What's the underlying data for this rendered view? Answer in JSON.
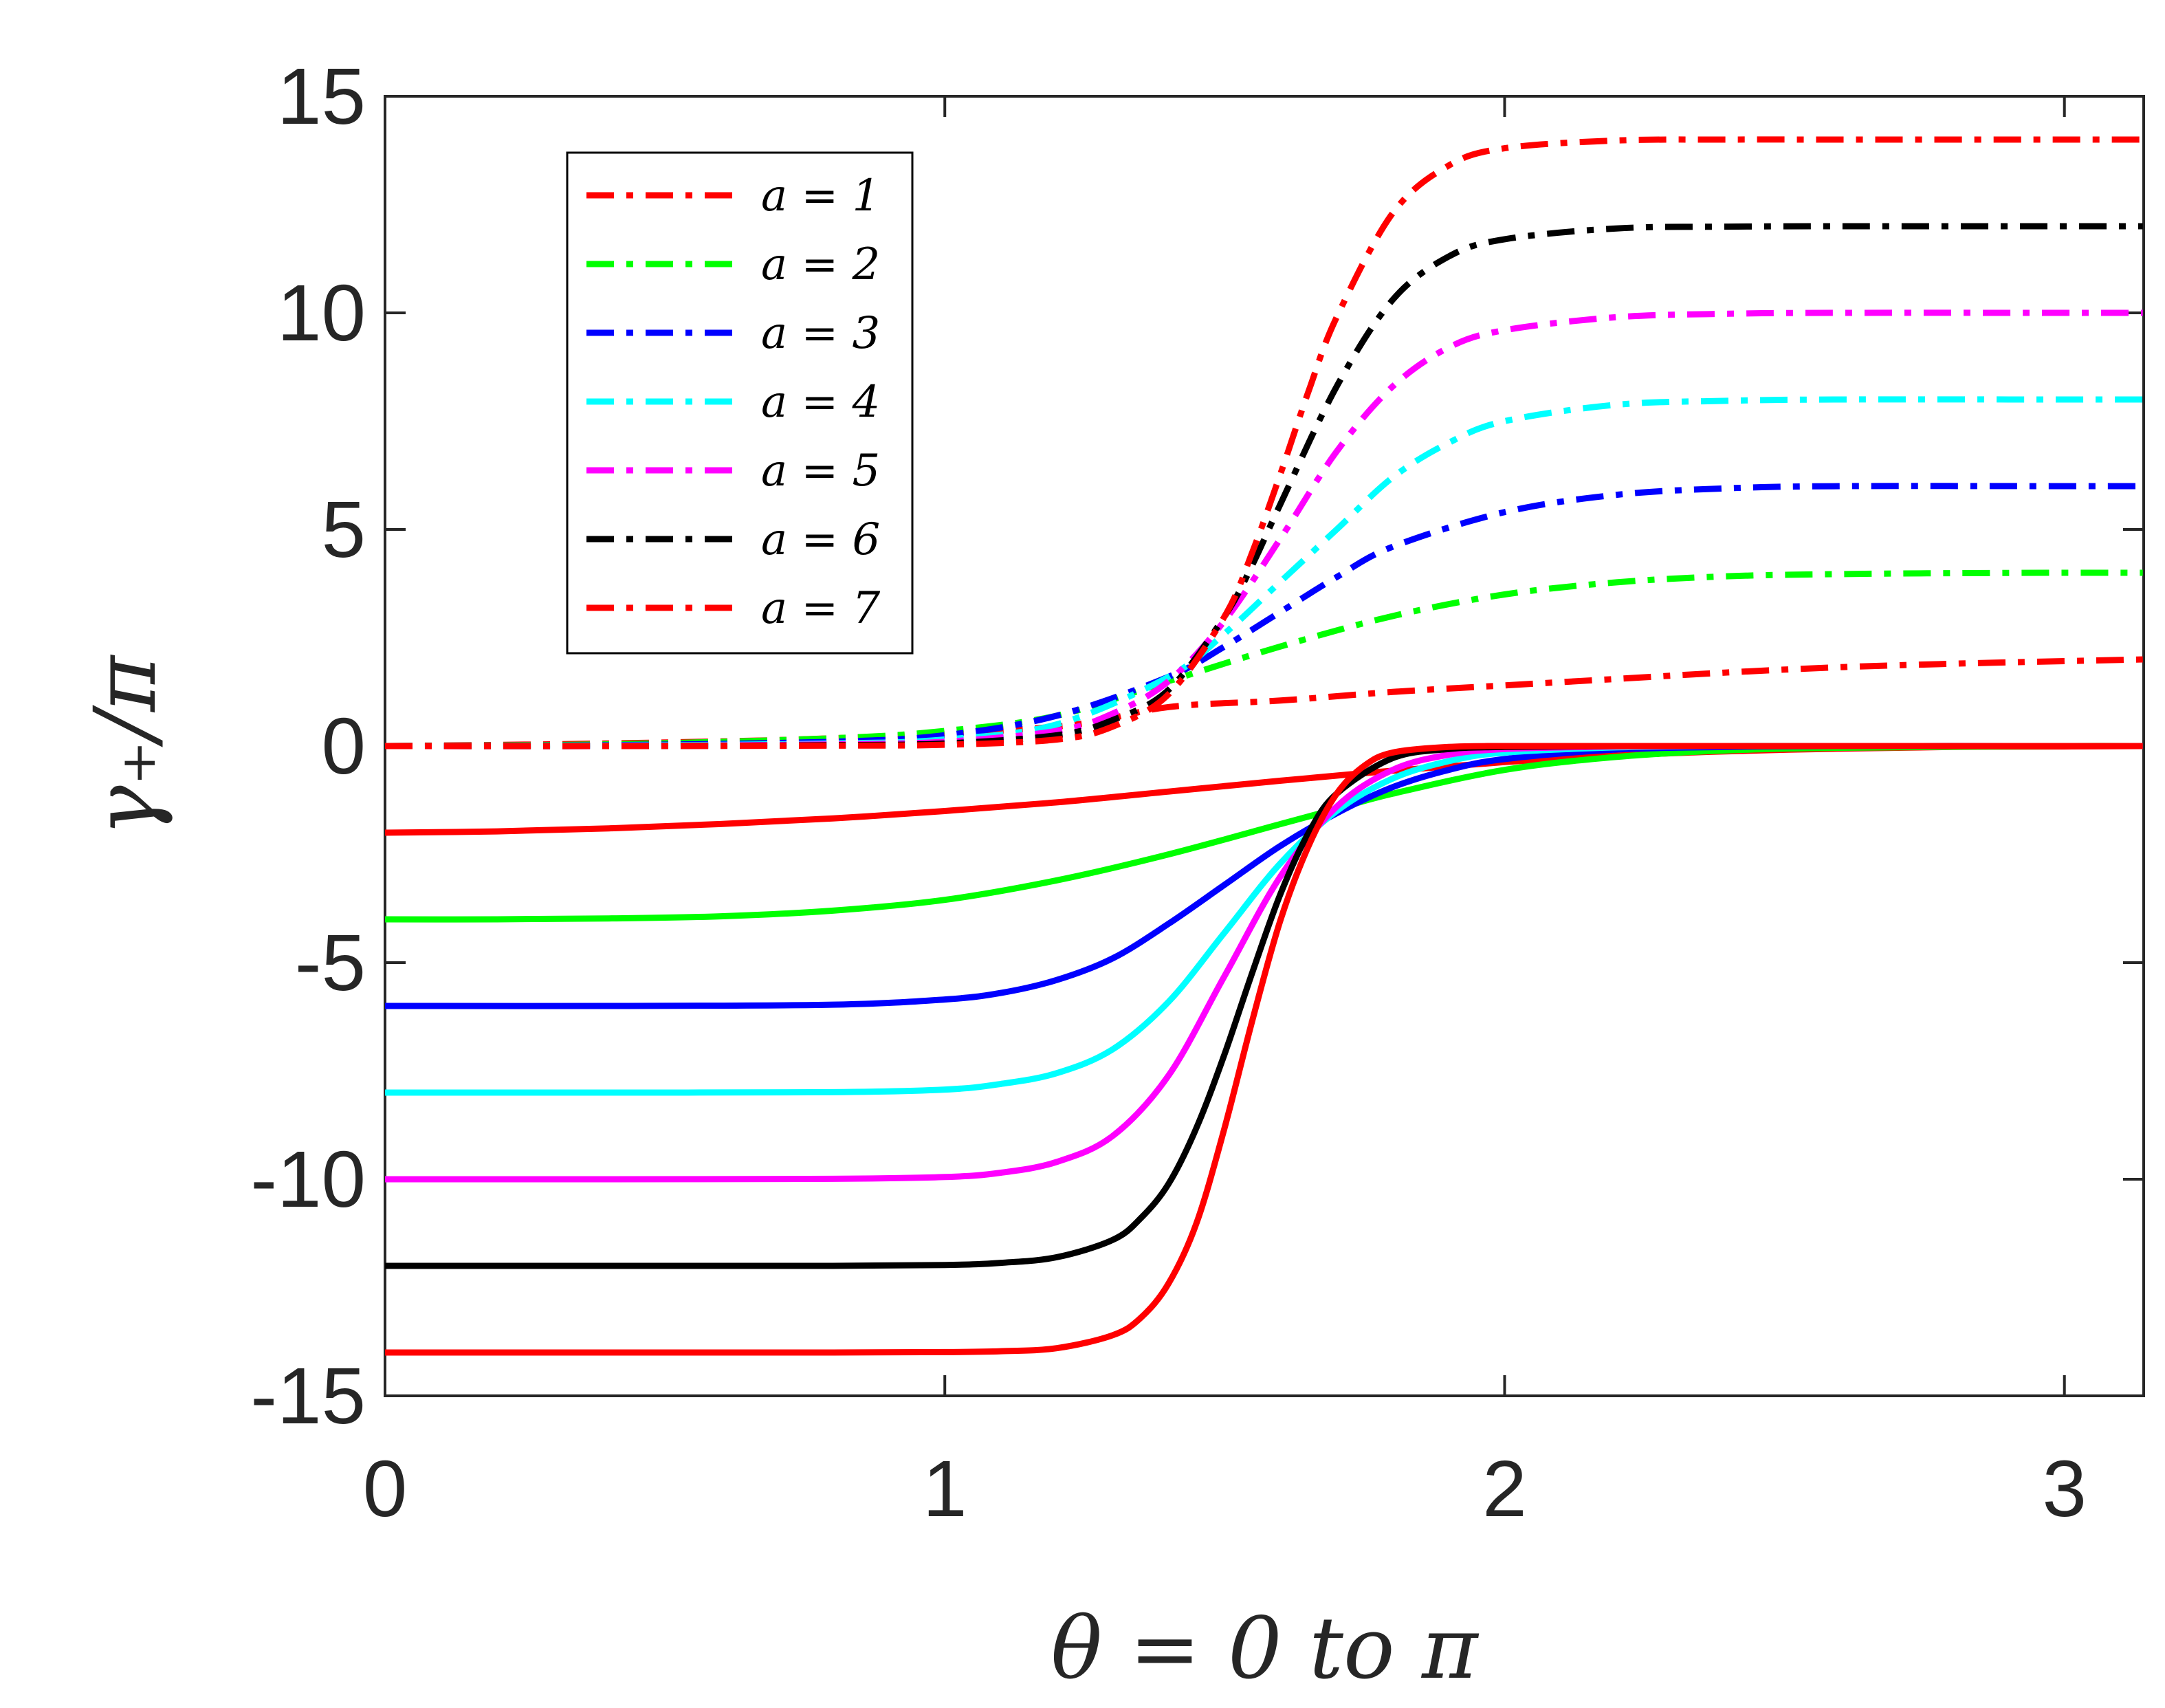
{
  "chart_data": {
    "type": "line",
    "title": "",
    "xlabel": "θ = 0 to π",
    "ylabel": "γ₊/π",
    "xlim": [
      0,
      3.14159
    ],
    "ylim": [
      -15,
      15
    ],
    "xticks": [
      "0",
      "1",
      "2",
      "3"
    ],
    "yticks": [
      "-15",
      "-10",
      "-5",
      "0",
      "5",
      "10",
      "15"
    ],
    "grid": false,
    "legend": {
      "position": "top-left",
      "entries": [
        "a = 1",
        "a = 2",
        "a = 3",
        "a = 4",
        "a = 5",
        "a = 6",
        "a = 7"
      ]
    },
    "series": [
      {
        "name": "a = 1",
        "group": "dash-dot",
        "color": "#ff0000",
        "x": [
          0,
          0.4,
          0.8,
          1.2,
          1.4,
          1.6,
          1.8,
          2.0,
          2.2,
          2.4,
          2.6,
          2.8,
          3.0,
          3.14
        ],
        "y": [
          0,
          0.06,
          0.18,
          0.45,
          0.9,
          1.05,
          1.25,
          1.4,
          1.55,
          1.7,
          1.82,
          1.9,
          1.96,
          2.0
        ]
      },
      {
        "name": "a = 2",
        "group": "dash-dot",
        "color": "#00ff00",
        "x": [
          0,
          0.4,
          0.8,
          1.0,
          1.2,
          1.4,
          1.6,
          1.8,
          2.0,
          2.2,
          2.4,
          2.6,
          2.8,
          3.0,
          3.14
        ],
        "y": [
          0,
          0.04,
          0.18,
          0.35,
          0.7,
          1.5,
          2.3,
          3.0,
          3.5,
          3.78,
          3.92,
          3.97,
          3.99,
          4.0,
          4.0
        ]
      },
      {
        "name": "a = 3",
        "group": "dash-dot",
        "color": "#0000ff",
        "x": [
          0,
          0.4,
          0.8,
          1.0,
          1.2,
          1.4,
          1.5,
          1.6,
          1.7,
          1.8,
          2.0,
          2.2,
          2.4,
          2.6,
          3.0,
          3.14
        ],
        "y": [
          0,
          0.02,
          0.1,
          0.25,
          0.7,
          1.6,
          2.3,
          3.1,
          3.9,
          4.6,
          5.4,
          5.8,
          5.95,
          6.0,
          6.0,
          6.0
        ]
      },
      {
        "name": "a = 4",
        "group": "dash-dot",
        "color": "#00ffff",
        "x": [
          0,
          0.4,
          0.8,
          1.0,
          1.2,
          1.4,
          1.5,
          1.6,
          1.7,
          1.8,
          1.9,
          2.0,
          2.2,
          2.4,
          2.6,
          3.0,
          3.14
        ],
        "y": [
          0,
          0.01,
          0.06,
          0.15,
          0.5,
          1.6,
          2.6,
          3.8,
          5.0,
          6.2,
          7.0,
          7.5,
          7.88,
          7.97,
          8.0,
          8.0,
          8.0
        ]
      },
      {
        "name": "a = 5",
        "group": "dash-dot",
        "color": "#ff00ff",
        "x": [
          0,
          0.4,
          0.8,
          1.0,
          1.2,
          1.3,
          1.4,
          1.5,
          1.6,
          1.7,
          1.8,
          1.9,
          2.0,
          2.2,
          2.4,
          2.6,
          3.0,
          3.14
        ],
        "y": [
          0,
          0.0,
          0.04,
          0.1,
          0.35,
          0.75,
          1.5,
          2.9,
          4.8,
          6.8,
          8.3,
          9.2,
          9.6,
          9.9,
          9.98,
          10.0,
          10.0,
          10.0
        ]
      },
      {
        "name": "a = 6",
        "group": "dash-dot",
        "color": "#000000",
        "x": [
          0,
          0.4,
          0.8,
          1.0,
          1.2,
          1.3,
          1.4,
          1.5,
          1.55,
          1.6,
          1.7,
          1.8,
          1.9,
          2.0,
          2.2,
          2.4,
          2.6,
          3.0,
          3.14
        ],
        "y": [
          0,
          0.0,
          0.02,
          0.06,
          0.25,
          0.6,
          1.3,
          3.0,
          4.2,
          5.6,
          8.3,
          10.3,
          11.3,
          11.7,
          11.95,
          11.99,
          12.0,
          12.0,
          12.0
        ]
      },
      {
        "name": "a = 7",
        "group": "dash-dot",
        "color": "#ff0000",
        "x": [
          0,
          0.4,
          0.8,
          1.0,
          1.2,
          1.3,
          1.4,
          1.5,
          1.55,
          1.6,
          1.65,
          1.7,
          1.8,
          1.9,
          2.0,
          2.2,
          2.4,
          2.6,
          3.0,
          3.14
        ],
        "y": [
          0,
          0.0,
          0.01,
          0.03,
          0.15,
          0.45,
          1.2,
          3.0,
          4.5,
          6.3,
          8.2,
          9.9,
          12.3,
          13.4,
          13.8,
          13.98,
          14.0,
          14.0,
          14.0,
          14.0
        ]
      },
      {
        "name": "a = 1",
        "group": "solid",
        "color": "#ff0000",
        "x": [
          0,
          0.2,
          0.4,
          0.6,
          0.8,
          1.0,
          1.2,
          1.4,
          1.6,
          1.8,
          2.0,
          2.2,
          2.4,
          2.6,
          2.8,
          3.0,
          3.14
        ],
        "y": [
          -2.0,
          -1.97,
          -1.9,
          -1.8,
          -1.67,
          -1.5,
          -1.3,
          -1.05,
          -0.8,
          -0.57,
          -0.37,
          -0.22,
          -0.12,
          -0.06,
          -0.02,
          -0.01,
          0.0
        ]
      },
      {
        "name": "a = 2",
        "group": "solid",
        "color": "#00ff00",
        "x": [
          0,
          0.2,
          0.4,
          0.6,
          0.8,
          1.0,
          1.2,
          1.4,
          1.6,
          1.7,
          1.8,
          2.0,
          2.2,
          2.4,
          2.6,
          3.0,
          3.14
        ],
        "y": [
          -4.0,
          -4.0,
          -3.98,
          -3.93,
          -3.8,
          -3.55,
          -3.1,
          -2.5,
          -1.8,
          -1.45,
          -1.1,
          -0.55,
          -0.25,
          -0.1,
          -0.04,
          0.0,
          0.0
        ]
      },
      {
        "name": "a = 3",
        "group": "solid",
        "color": "#0000ff",
        "x": [
          0,
          0.4,
          0.8,
          1.0,
          1.1,
          1.2,
          1.3,
          1.4,
          1.5,
          1.6,
          1.7,
          1.8,
          1.9,
          2.0,
          2.2,
          2.4,
          2.6,
          3.0,
          3.14
        ],
        "y": [
          -6.0,
          -6.0,
          -5.97,
          -5.85,
          -5.7,
          -5.4,
          -4.9,
          -4.1,
          -3.2,
          -2.3,
          -1.55,
          -0.95,
          -0.55,
          -0.3,
          -0.08,
          -0.02,
          0.0,
          0.0,
          0.0
        ]
      },
      {
        "name": "a = 4",
        "group": "solid",
        "color": "#00ffff",
        "x": [
          0,
          0.4,
          0.8,
          1.0,
          1.1,
          1.2,
          1.3,
          1.4,
          1.5,
          1.6,
          1.7,
          1.8,
          1.9,
          2.0,
          2.2,
          2.4,
          2.6,
          3.0,
          3.14
        ],
        "y": [
          -8.0,
          -8.0,
          -7.99,
          -7.93,
          -7.8,
          -7.55,
          -7.0,
          -5.9,
          -4.3,
          -2.7,
          -1.5,
          -0.75,
          -0.35,
          -0.15,
          -0.03,
          0.0,
          0.0,
          0.0,
          0.0
        ]
      },
      {
        "name": "a = 5",
        "group": "solid",
        "color": "#ff00ff",
        "x": [
          0,
          0.4,
          0.8,
          1.0,
          1.1,
          1.2,
          1.3,
          1.4,
          1.5,
          1.6,
          1.7,
          1.8,
          1.9,
          2.0,
          2.2,
          2.4,
          2.6,
          3.0,
          3.14
        ],
        "y": [
          -10.0,
          -10.0,
          -9.99,
          -9.95,
          -9.85,
          -9.6,
          -9.0,
          -7.6,
          -5.3,
          -3.0,
          -1.4,
          -0.55,
          -0.2,
          -0.07,
          -0.01,
          0.0,
          0.0,
          0.0,
          0.0
        ]
      },
      {
        "name": "a = 6",
        "group": "solid",
        "color": "#000000",
        "x": [
          0,
          0.4,
          0.8,
          1.0,
          1.1,
          1.2,
          1.3,
          1.35,
          1.4,
          1.45,
          1.5,
          1.55,
          1.6,
          1.65,
          1.7,
          1.8,
          1.9,
          2.0,
          2.2,
          2.6,
          3.14
        ],
        "y": [
          -12.0,
          -12.0,
          -12.0,
          -11.98,
          -11.93,
          -11.8,
          -11.4,
          -10.9,
          -10.1,
          -8.8,
          -7.1,
          -5.2,
          -3.4,
          -2.0,
          -1.1,
          -0.28,
          -0.07,
          -0.02,
          0.0,
          0.0,
          0.0
        ]
      },
      {
        "name": "a = 7",
        "group": "solid",
        "color": "#ff0000",
        "x": [
          0,
          0.4,
          0.8,
          1.0,
          1.1,
          1.2,
          1.3,
          1.35,
          1.4,
          1.45,
          1.5,
          1.55,
          1.6,
          1.65,
          1.7,
          1.75,
          1.8,
          1.9,
          2.0,
          2.2,
          2.6,
          3.14
        ],
        "y": [
          -14.0,
          -14.0,
          -14.0,
          -13.99,
          -13.97,
          -13.9,
          -13.6,
          -13.2,
          -12.4,
          -11.0,
          -8.8,
          -6.3,
          -4.0,
          -2.3,
          -1.1,
          -0.45,
          -0.15,
          -0.02,
          0.0,
          0.0,
          0.0,
          0.0
        ]
      }
    ]
  }
}
